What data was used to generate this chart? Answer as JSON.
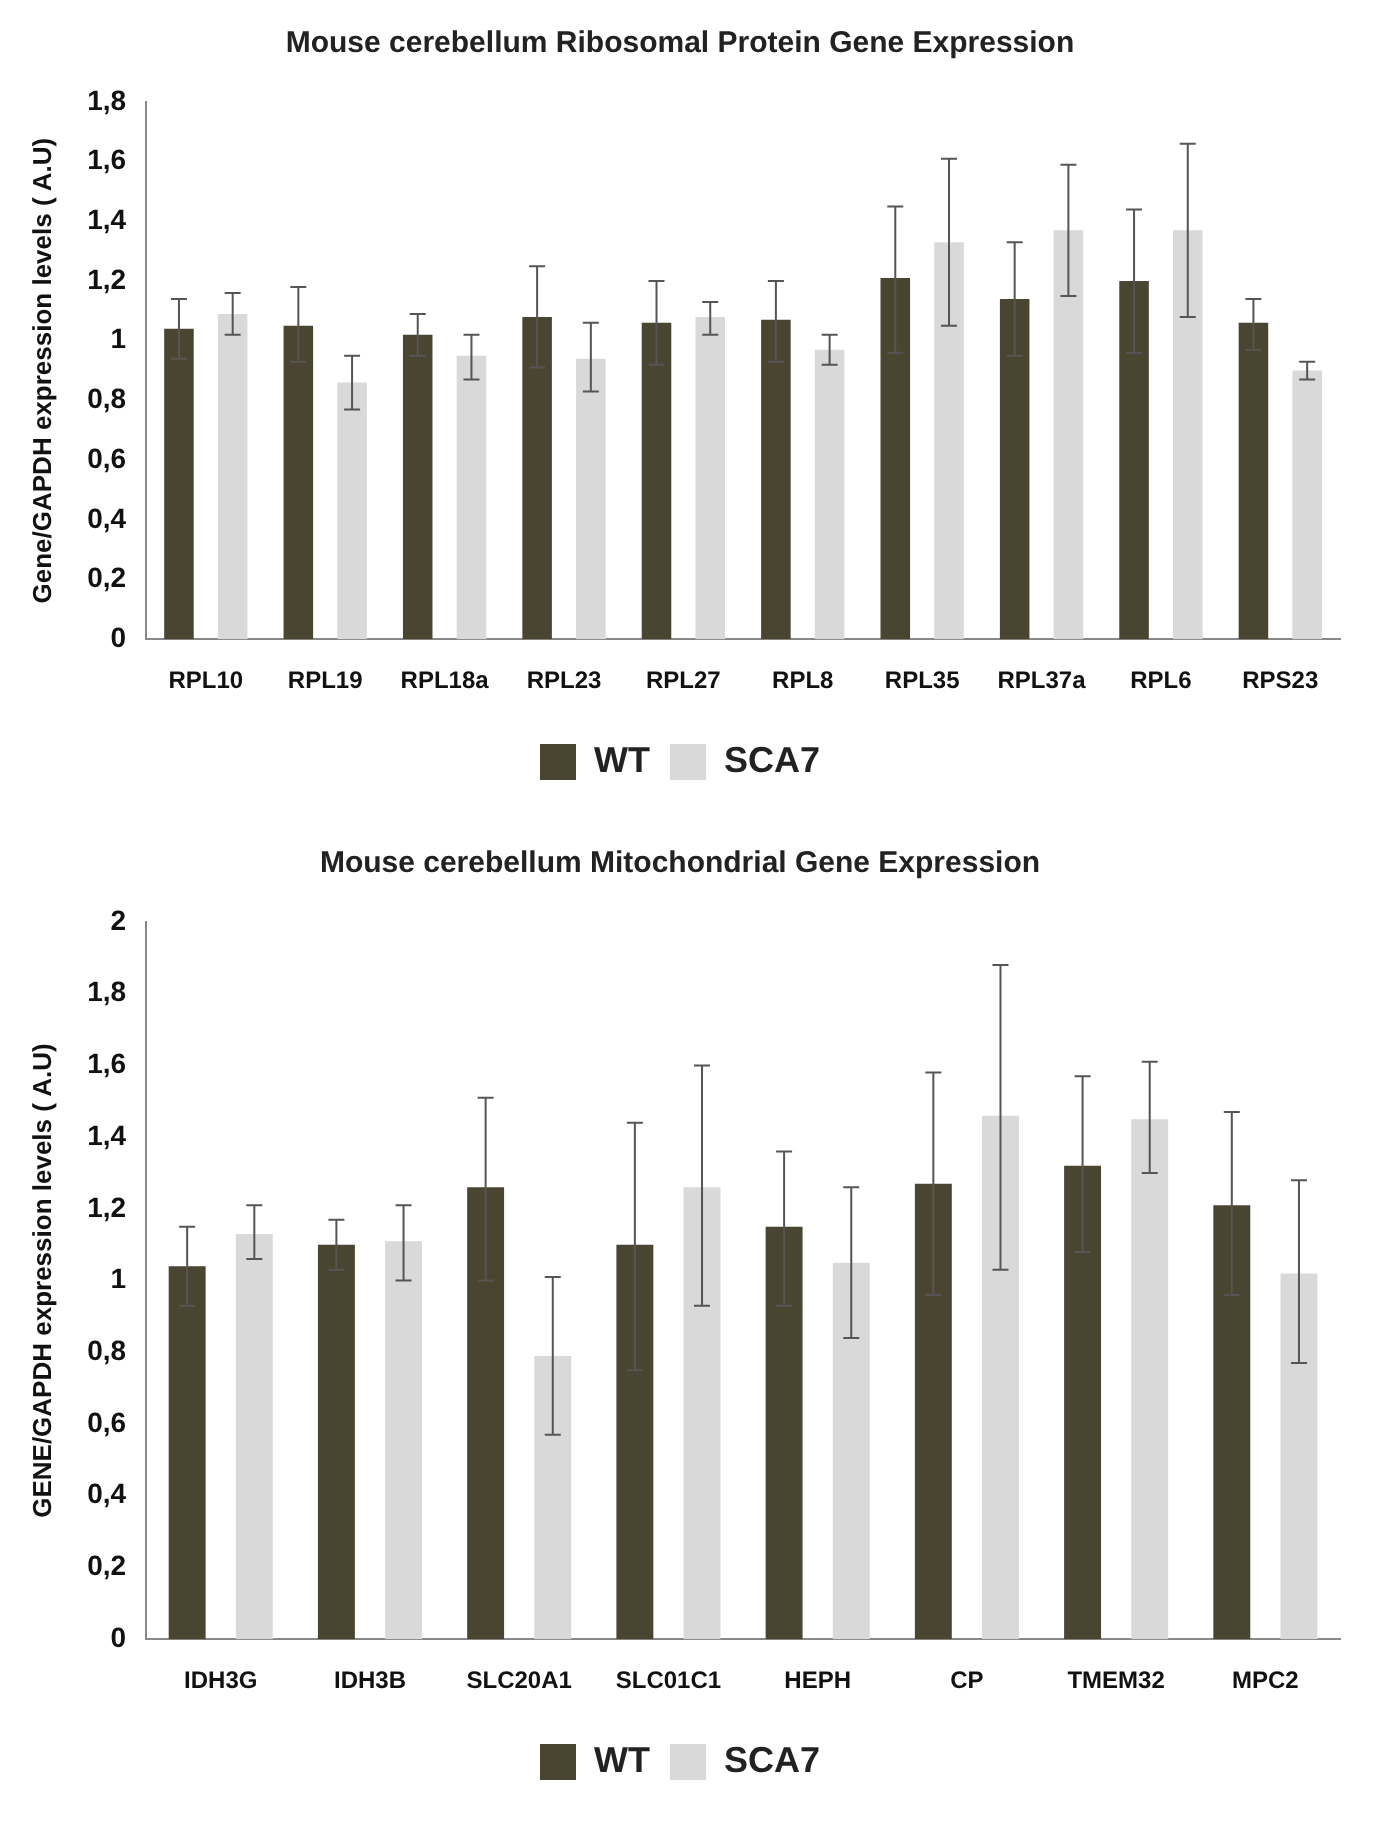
{
  "chart_data": [
    {
      "type": "bar",
      "title": "Mouse cerebellum Ribosomal Protein Gene Expression",
      "ylabel": "Gene/GAPDH expression levels ( A.U)",
      "categories": [
        "RPL10",
        "RPL19",
        "RPL18a",
        "RPL23",
        "RPL27",
        "RPL8",
        "RPL35",
        "RPL37a",
        "RPL6",
        "RPS23"
      ],
      "series": [
        {
          "name": "WT",
          "color": "#4a4530",
          "values": [
            1.04,
            1.05,
            1.02,
            1.08,
            1.06,
            1.07,
            1.21,
            1.14,
            1.2,
            1.06
          ],
          "errors": [
            [
              0.94,
              1.14
            ],
            [
              0.93,
              1.18
            ],
            [
              0.95,
              1.09
            ],
            [
              0.91,
              1.25
            ],
            [
              0.92,
              1.2
            ],
            [
              0.93,
              1.2
            ],
            [
              0.96,
              1.45
            ],
            [
              0.95,
              1.33
            ],
            [
              0.96,
              1.44
            ],
            [
              0.97,
              1.14
            ]
          ]
        },
        {
          "name": "SCA7",
          "color": "#d9d9d9",
          "values": [
            1.09,
            0.86,
            0.95,
            0.94,
            1.08,
            0.97,
            1.33,
            1.37,
            1.37,
            0.9
          ],
          "errors": [
            [
              1.02,
              1.16
            ],
            [
              0.77,
              0.95
            ],
            [
              0.87,
              1.02
            ],
            [
              0.83,
              1.06
            ],
            [
              1.02,
              1.13
            ],
            [
              0.92,
              1.02
            ],
            [
              1.05,
              1.61
            ],
            [
              1.15,
              1.59
            ],
            [
              1.08,
              1.66
            ],
            [
              0.87,
              0.93
            ]
          ]
        }
      ],
      "ylim": [
        0,
        1.8
      ],
      "yticks": [
        0,
        {
          "value": 0.2,
          "label": "0,2"
        },
        {
          "value": 0.4,
          "label": "0,4"
        },
        {
          "value": 0.6,
          "label": "0,6"
        },
        {
          "value": 0.8,
          "label": "0,8"
        },
        1,
        {
          "value": 1.2,
          "label": "1,2"
        },
        {
          "value": 1.4,
          "label": "1,4"
        },
        {
          "value": 1.6,
          "label": "1,6"
        },
        {
          "value": 1.8,
          "label": "1,8"
        }
      ],
      "grid": false,
      "legend": "bottom"
    },
    {
      "type": "bar",
      "title": "Mouse cerebellum Mitochondrial Gene Expression",
      "ylabel": "GENE/GAPDH expression levels ( A.U)",
      "categories": [
        "IDH3G",
        "IDH3B",
        "SLC20A1",
        "SLC01C1",
        "HEPH",
        "CP",
        "TMEM32",
        "MPC2"
      ],
      "series": [
        {
          "name": "WT",
          "color": "#4a4530",
          "values": [
            1.04,
            1.1,
            1.26,
            1.1,
            1.15,
            1.27,
            1.32,
            1.21
          ],
          "errors": [
            [
              0.93,
              1.15
            ],
            [
              1.03,
              1.17
            ],
            [
              1.0,
              1.51
            ],
            [
              0.75,
              1.44
            ],
            [
              0.93,
              1.36
            ],
            [
              0.96,
              1.58
            ],
            [
              1.08,
              1.57
            ],
            [
              0.96,
              1.47
            ]
          ]
        },
        {
          "name": "SCA7",
          "color": "#d9d9d9",
          "values": [
            1.13,
            1.11,
            0.79,
            1.26,
            1.05,
            1.46,
            1.45,
            1.02
          ],
          "errors": [
            [
              1.06,
              1.21
            ],
            [
              1.0,
              1.21
            ],
            [
              0.57,
              1.01
            ],
            [
              0.93,
              1.6
            ],
            [
              0.84,
              1.26
            ],
            [
              1.03,
              1.88
            ],
            [
              1.3,
              1.61
            ],
            [
              0.77,
              1.28
            ]
          ]
        }
      ],
      "ylim": [
        0,
        2
      ],
      "yticks": [
        0,
        {
          "value": 0.2,
          "label": "0,2"
        },
        {
          "value": 0.4,
          "label": "0,4"
        },
        {
          "value": 0.6,
          "label": "0,6"
        },
        {
          "value": 0.8,
          "label": "0,8"
        },
        1,
        {
          "value": 1.2,
          "label": "1,2"
        },
        {
          "value": 1.4,
          "label": "1,4"
        },
        {
          "value": 1.6,
          "label": "1,6"
        },
        {
          "value": 1.8,
          "label": "1,8"
        },
        2
      ],
      "grid": false,
      "legend": "bottom"
    }
  ]
}
